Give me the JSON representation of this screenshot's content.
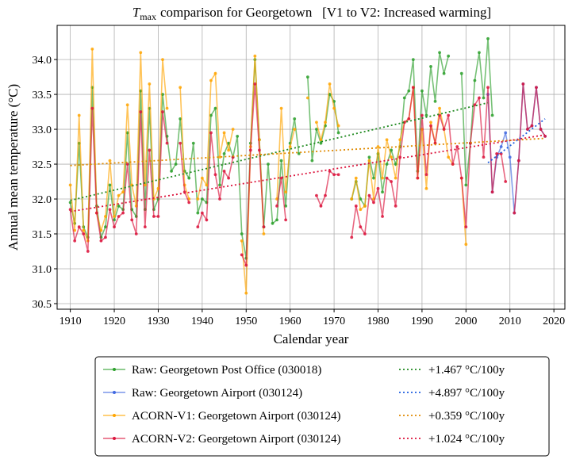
{
  "chart_data": {
    "type": "line",
    "title": {
      "symbol": "T",
      "subscript": "max",
      "text": "comparison for Georgetown   [V1 to V2: Increased warming]"
    },
    "x_label": "Calendar year",
    "y_label": "Annual mean temperature (°C)",
    "xlim": [
      1907,
      2022.5
    ],
    "ylim": [
      30.42,
      34.49
    ],
    "xticks": [
      1910,
      1920,
      1930,
      1940,
      1950,
      1960,
      1970,
      1980,
      1990,
      2000,
      2010,
      2020
    ],
    "yticks": [
      30.5,
      {
        "value": 31,
        "label": "31.0"
      },
      31.5,
      {
        "value": 32,
        "label": "32.0"
      },
      32.5,
      {
        "value": 33,
        "label": "33.0"
      },
      33.5,
      {
        "value": 34,
        "label": "34.0"
      }
    ],
    "grid": true,
    "legend": "bottom",
    "x": [
      1910,
      1911,
      1912,
      1913,
      1914,
      1915,
      1916,
      1917,
      1918,
      1919,
      1920,
      1921,
      1922,
      1923,
      1924,
      1925,
      1926,
      1927,
      1928,
      1929,
      1930,
      1931,
      1932,
      1933,
      1934,
      1935,
      1936,
      1937,
      1938,
      1939,
      1940,
      1941,
      1942,
      1943,
      1944,
      1945,
      1946,
      1947,
      1948,
      1949,
      1950,
      1951,
      1952,
      1953,
      1954,
      1955,
      1956,
      1957,
      1958,
      1959,
      1960,
      1961,
      1962,
      1963,
      1964,
      1965,
      1966,
      1967,
      1968,
      1969,
      1970,
      1971,
      1972,
      1973,
      1974,
      1975,
      1976,
      1977,
      1978,
      1979,
      1980,
      1981,
      1982,
      1983,
      1984,
      1985,
      1986,
      1987,
      1988,
      1989,
      1990,
      1991,
      1992,
      1993,
      1994,
      1995,
      1996,
      1997,
      1998,
      1999,
      2000,
      2001,
      2002,
      2003,
      2004,
      2005,
      2006,
      2007,
      2008,
      2009,
      2010,
      2011,
      2012,
      2013,
      2014,
      2015,
      2016,
      2017,
      2018
    ],
    "series": [
      {
        "name": "Raw: Georgetown Post Office (030018)",
        "color": "#2ca02c",
        "values": [
          31.95,
          31.65,
          32.8,
          31.6,
          31.45,
          33.6,
          31.9,
          31.45,
          31.6,
          32.2,
          31.7,
          31.9,
          31.85,
          32.95,
          31.85,
          31.75,
          33.55,
          31.85,
          33.3,
          31.85,
          32.0,
          33.5,
          32.9,
          32.4,
          32.5,
          33.15,
          32.4,
          32.3,
          32.8,
          31.8,
          32.0,
          31.95,
          33.2,
          33.3,
          32.2,
          32.65,
          32.8,
          32.6,
          32.9,
          31.5,
          31.15,
          32.8,
          34.0,
          32.85,
          31.6,
          32.5,
          31.65,
          31.7,
          32.55,
          31.9,
          32.8,
          33.15,
          32.65,
          null,
          33.75,
          32.55,
          33.0,
          32.8,
          33.05,
          33.5,
          33.4,
          32.95,
          null,
          null,
          32.0,
          32.25,
          32.0,
          31.9,
          32.6,
          32.3,
          32.65,
          32.1,
          32.5,
          32.7,
          32.5,
          32.75,
          33.45,
          33.55,
          34.0,
          32.4,
          33.55,
          33.2,
          33.9,
          33.4,
          34.1,
          33.8,
          34.05,
          null,
          null,
          33.8,
          32.2,
          32.8,
          33.7,
          34.1,
          33.45,
          34.3,
          33.2,
          null,
          null,
          null,
          null,
          null,
          null,
          null,
          null,
          null,
          null,
          null,
          null
        ]
      },
      {
        "name": "Raw: Georgetown Airport (030124)",
        "color": "#4169e1",
        "x": [
          2005,
          2006,
          2007,
          2008,
          2009,
          2010,
          2011,
          2012,
          2013,
          2014,
          2015,
          2016,
          2017,
          2018
        ],
        "values": [
          33.5,
          32.1,
          32.6,
          32.75,
          32.95,
          32.6,
          31.8,
          32.55,
          33.65,
          33.0,
          33.05,
          33.6,
          33.0,
          32.9
        ]
      },
      {
        "name": "ACORN-V1: Georgetown Airport (030124)",
        "color": "#ffa500",
        "values": [
          32.2,
          31.55,
          33.2,
          31.55,
          31.4,
          34.15,
          31.8,
          31.55,
          31.75,
          32.55,
          31.75,
          32.05,
          32.1,
          33.35,
          32.2,
          31.9,
          34.1,
          32.2,
          33.65,
          32.0,
          32.15,
          34.0,
          33.3,
          null,
          null,
          33.6,
          32.2,
          32.0,
          null,
          32.0,
          32.3,
          32.2,
          33.7,
          33.8,
          32.6,
          32.95,
          32.7,
          33.0,
          null,
          31.4,
          30.65,
          32.75,
          34.05,
          32.85,
          31.5,
          null,
          null,
          32.0,
          33.3,
          32.1,
          32.75,
          33.0,
          null,
          null,
          33.45,
          null,
          33.1,
          32.85,
          33.1,
          33.65,
          33.3,
          33.05,
          null,
          null,
          32.0,
          32.3,
          31.85,
          31.9,
          32.55,
          32.0,
          32.75,
          32.3,
          32.85,
          32.6,
          32.3,
          32.85,
          33.1,
          33.15,
          33.6,
          32.3,
          33.0,
          32.15,
          33.1,
          32.8,
          33.3,
          33.0,
          32.6,
          32.5,
          null,
          32.3,
          31.35,
          null,
          null,
          null,
          null,
          null,
          null,
          null,
          null,
          null,
          null,
          null,
          null,
          null,
          null,
          null,
          null,
          null,
          null
        ]
      },
      {
        "name": "ACORN-V2: Georgetown Airport (030124)",
        "color": "#dc143c",
        "values": [
          31.85,
          31.4,
          31.6,
          31.5,
          31.25,
          33.3,
          31.8,
          31.4,
          31.45,
          31.85,
          31.6,
          31.75,
          31.8,
          32.5,
          31.7,
          31.5,
          33.25,
          31.6,
          32.7,
          31.75,
          31.75,
          33.25,
          32.8,
          null,
          null,
          32.8,
          32.1,
          31.95,
          null,
          31.6,
          31.8,
          31.7,
          32.95,
          32.35,
          32.0,
          32.4,
          32.3,
          32.6,
          null,
          31.2,
          31.05,
          32.7,
          33.65,
          32.7,
          31.6,
          null,
          null,
          31.9,
          32.3,
          31.7,
          null,
          null,
          null,
          null,
          null,
          null,
          32.05,
          31.9,
          32.05,
          32.4,
          32.35,
          32.35,
          null,
          null,
          31.45,
          31.9,
          31.6,
          31.5,
          32.05,
          31.95,
          32.15,
          31.75,
          32.3,
          32.25,
          31.9,
          32.6,
          33.1,
          33.15,
          33.6,
          32.3,
          33.2,
          32.35,
          33.05,
          32.8,
          33.2,
          33.0,
          33.2,
          32.5,
          32.75,
          32.3,
          31.6,
          32.8,
          33.35,
          33.45,
          32.6,
          33.6,
          32.1,
          32.65,
          32.65,
          32.25,
          null,
          31.8,
          32.55,
          33.65,
          33.0,
          33.05,
          33.6,
          33.0,
          32.9
        ]
      }
    ],
    "trends": [
      {
        "name": "+1.467 °C/100y",
        "color": "#228b22",
        "x": [
          1910,
          2005
        ],
        "values": [
          31.98,
          33.38
        ]
      },
      {
        "name": "+4.897 °C/100y",
        "color": "#1f5fe0",
        "x": [
          2005,
          2018
        ],
        "values": [
          32.52,
          33.15
        ]
      },
      {
        "name": "+0.359 °C/100y",
        "color": "#e08a00",
        "x": [
          1910,
          2018
        ],
        "values": [
          32.48,
          32.87
        ]
      },
      {
        "name": "+1.024 °C/100y",
        "color": "#dc143c",
        "x": [
          1910,
          2018
        ],
        "values": [
          31.82,
          32.92
        ]
      }
    ]
  }
}
